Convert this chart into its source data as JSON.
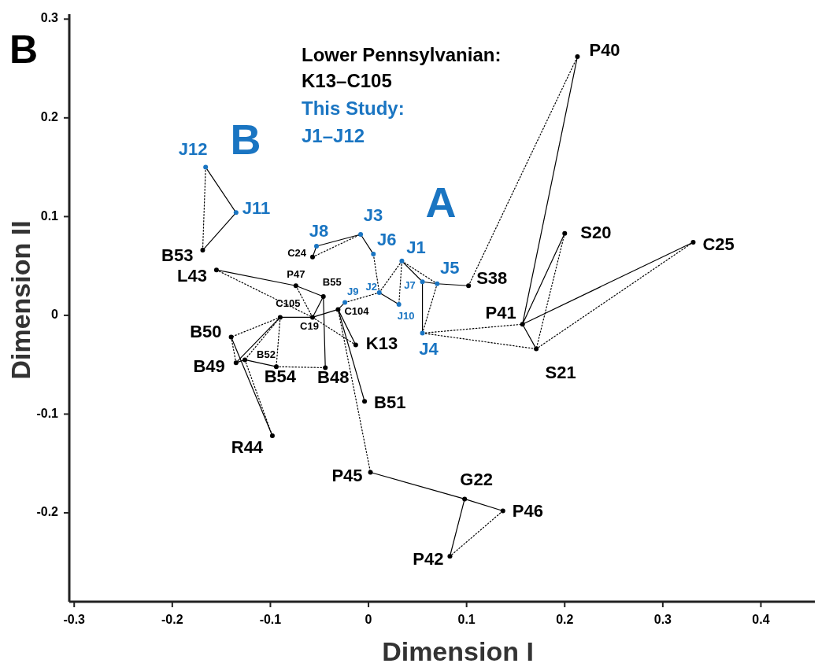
{
  "chart_data": {
    "type": "scatter",
    "title": "B",
    "xlabel": "Dimension I",
    "ylabel": "Dimension II",
    "xlim": [
      -0.305,
      0.455
    ],
    "ylim": [
      -0.29,
      0.305
    ],
    "xticks": [
      -0.3,
      -0.2,
      -0.1,
      0,
      0.1,
      0.2,
      0.3,
      0.4
    ],
    "yticks": [
      -0.2,
      -0.1,
      0,
      0.1,
      0.2,
      0.3
    ],
    "annotations": [
      "Lower Pennsylvanian:",
      "K13–C105",
      "This Study:",
      "J1–J12",
      "A",
      "B"
    ],
    "series": [
      {
        "type": "scatter",
        "color": "#000000",
        "marker": "circle",
        "x": [
          0.213,
          0.2,
          0.331,
          0.102,
          0.157,
          0.171,
          -0.013,
          -0.004,
          -0.169,
          -0.155,
          -0.14,
          -0.135,
          -0.094,
          -0.044,
          -0.098,
          0.002,
          0.098,
          0.137,
          0.083
        ],
        "values": [
          0.262,
          0.083,
          0.074,
          0.03,
          -0.009,
          -0.034,
          -0.03,
          -0.087,
          0.066,
          0.046,
          -0.022,
          -0.048,
          -0.052,
          -0.053,
          -0.122,
          -0.159,
          -0.186,
          -0.198,
          -0.244
        ],
        "value_labels": [
          "P40",
          "S20",
          "C25",
          "S38",
          "P41",
          "S21",
          "K13",
          "B51",
          "B53",
          "L43",
          "B50",
          "B49",
          "B54",
          "B48",
          "R44",
          "P45",
          "G22",
          "P46",
          "P42"
        ]
      },
      {
        "type": "scatter",
        "color": "#000000",
        "marker": "circle",
        "x": [
          -0.057,
          -0.074,
          -0.09,
          -0.057,
          -0.046,
          -0.126,
          -0.031
        ],
        "values": [
          0.059,
          0.03,
          -0.002,
          -0.002,
          0.019,
          -0.045,
          0.006
        ],
        "value_labels": [
          "C24",
          "P47",
          "C105",
          "C19",
          "B55",
          "B52",
          "C104"
        ]
      },
      {
        "type": "scatter",
        "color": "#1a75c2",
        "marker": "circle",
        "x": [
          0.034,
          -0.008,
          0.055,
          0.07,
          0.005,
          -0.053,
          -0.135,
          -0.166
        ],
        "values": [
          0.055,
          0.082,
          -0.018,
          0.032,
          0.062,
          0.07,
          0.104,
          0.15
        ],
        "value_labels": [
          "J1",
          "J3",
          "J4",
          "J5",
          "J6",
          "J8",
          "J11",
          "J12"
        ]
      },
      {
        "type": "scatter",
        "color": "#1a75c2",
        "marker": "circle",
        "x": [
          0.011,
          0.055,
          -0.024,
          0.031
        ],
        "values": [
          0.023,
          0.034,
          0.013,
          0.011
        ],
        "value_labels": [
          "J2",
          "J7",
          "J9",
          "J10"
        ]
      },
      {
        "type": "line",
        "color": "#000000",
        "line_style": "solid",
        "marker": "none",
        "x": [
          -0.166,
          -0.135,
          -0.169
        ],
        "values": [
          0.15,
          0.104,
          0.066
        ]
      },
      {
        "type": "line",
        "color": "#000000",
        "line_style": "solid",
        "marker": "none",
        "x": [
          -0.057,
          -0.053,
          -0.008,
          0.005
        ],
        "values": [
          0.059,
          0.07,
          0.082,
          0.062
        ]
      },
      {
        "type": "line",
        "color": "#000000",
        "line_style": "solid",
        "marker": "none",
        "x": [
          0.011,
          0.031
        ],
        "values": [
          0.023,
          0.011
        ]
      },
      {
        "type": "line",
        "color": "#000000",
        "line_style": "solid",
        "marker": "none",
        "x": [
          0.034,
          0.055
        ],
        "values": [
          0.055,
          0.034
        ]
      },
      {
        "type": "line",
        "color": "#000000",
        "line_style": "solid",
        "marker": "none",
        "x": [
          0.055,
          0.055,
          0.07,
          0.102
        ],
        "values": [
          -0.018,
          0.034,
          0.032,
          0.03
        ]
      },
      {
        "type": "line",
        "color": "#000000",
        "line_style": "solid",
        "marker": "none",
        "x": [
          -0.155,
          -0.074,
          -0.046,
          -0.044
        ],
        "values": [
          0.046,
          0.03,
          0.019,
          -0.053
        ]
      },
      {
        "type": "line",
        "color": "#000000",
        "line_style": "solid",
        "marker": "none",
        "x": [
          -0.046,
          -0.057
        ],
        "values": [
          0.019,
          -0.002
        ]
      },
      {
        "type": "line",
        "color": "#000000",
        "line_style": "solid",
        "marker": "none",
        "x": [
          -0.09,
          -0.057,
          -0.031,
          -0.024
        ],
        "values": [
          -0.002,
          -0.002,
          0.006,
          0.013
        ]
      },
      {
        "type": "line",
        "color": "#000000",
        "line_style": "solid",
        "marker": "none",
        "x": [
          -0.031,
          -0.013
        ],
        "values": [
          0.006,
          -0.03
        ]
      },
      {
        "type": "line",
        "color": "#000000",
        "line_style": "solid",
        "marker": "none",
        "x": [
          -0.031,
          -0.004
        ],
        "values": [
          0.006,
          -0.087
        ]
      },
      {
        "type": "line",
        "color": "#000000",
        "line_style": "solid",
        "marker": "none",
        "x": [
          -0.09,
          -0.135,
          -0.126,
          -0.094
        ],
        "values": [
          -0.002,
          -0.048,
          -0.045,
          -0.052
        ]
      },
      {
        "type": "line",
        "color": "#000000",
        "line_style": "solid",
        "marker": "none",
        "x": [
          -0.14,
          -0.098
        ],
        "values": [
          -0.022,
          -0.122
        ]
      },
      {
        "type": "line",
        "color": "#000000",
        "line_style": "solid",
        "marker": "none",
        "x": [
          0.157,
          0.213
        ],
        "values": [
          -0.009,
          0.262
        ]
      },
      {
        "type": "line",
        "color": "#000000",
        "line_style": "solid",
        "marker": "none",
        "x": [
          0.157,
          0.2
        ],
        "values": [
          -0.009,
          0.083
        ]
      },
      {
        "type": "line",
        "color": "#000000",
        "line_style": "solid",
        "marker": "none",
        "x": [
          0.157,
          0.331
        ],
        "values": [
          -0.009,
          0.074
        ]
      },
      {
        "type": "line",
        "color": "#000000",
        "line_style": "solid",
        "marker": "none",
        "x": [
          0.157,
          0.171
        ],
        "values": [
          -0.009,
          -0.034
        ]
      },
      {
        "type": "line",
        "color": "#000000",
        "line_style": "solid",
        "marker": "none",
        "x": [
          0.002,
          0.098,
          0.137
        ],
        "values": [
          -0.159,
          -0.186,
          -0.198
        ]
      },
      {
        "type": "line",
        "color": "#000000",
        "line_style": "solid",
        "marker": "none",
        "x": [
          0.098,
          0.083
        ],
        "values": [
          -0.186,
          -0.244
        ]
      },
      {
        "type": "line",
        "color": "#000000",
        "line_style": "dotted",
        "marker": "none",
        "x": [
          -0.166,
          -0.169
        ],
        "values": [
          0.15,
          0.066
        ]
      },
      {
        "type": "line",
        "color": "#000000",
        "line_style": "dotted",
        "marker": "none",
        "x": [
          -0.057,
          -0.008
        ],
        "values": [
          0.059,
          0.082
        ]
      },
      {
        "type": "line",
        "color": "#000000",
        "line_style": "dotted",
        "marker": "none",
        "x": [
          0.005,
          0.011
        ],
        "values": [
          0.062,
          0.023
        ]
      },
      {
        "type": "line",
        "color": "#000000",
        "line_style": "dotted",
        "marker": "none",
        "x": [
          -0.024,
          0.011
        ],
        "values": [
          0.013,
          0.023
        ]
      },
      {
        "type": "line",
        "color": "#000000",
        "line_style": "dotted",
        "marker": "none",
        "x": [
          0.034,
          0.011
        ],
        "values": [
          0.055,
          0.023
        ]
      },
      {
        "type": "line",
        "color": "#000000",
        "line_style": "dotted",
        "marker": "none",
        "x": [
          0.034,
          0.031
        ],
        "values": [
          0.055,
          0.011
        ]
      },
      {
        "type": "line",
        "color": "#000000",
        "line_style": "dotted",
        "marker": "none",
        "x": [
          0.034,
          0.07
        ],
        "values": [
          0.055,
          0.032
        ]
      },
      {
        "type": "line",
        "color": "#000000",
        "line_style": "dotted",
        "marker": "none",
        "x": [
          0.07,
          0.055
        ],
        "values": [
          0.032,
          -0.018
        ]
      },
      {
        "type": "line",
        "color": "#000000",
        "line_style": "dotted",
        "marker": "none",
        "x": [
          0.055,
          0.157
        ],
        "values": [
          -0.018,
          -0.009
        ]
      },
      {
        "type": "line",
        "color": "#000000",
        "line_style": "dotted",
        "marker": "none",
        "x": [
          0.055,
          0.171
        ],
        "values": [
          -0.018,
          -0.034
        ]
      },
      {
        "type": "line",
        "color": "#000000",
        "line_style": "dotted",
        "marker": "none",
        "x": [
          0.102,
          0.213
        ],
        "values": [
          0.03,
          0.262
        ]
      },
      {
        "type": "line",
        "color": "#000000",
        "line_style": "dotted",
        "marker": "none",
        "x": [
          0.2,
          0.171
        ],
        "values": [
          0.083,
          -0.034
        ]
      },
      {
        "type": "line",
        "color": "#000000",
        "line_style": "dotted",
        "marker": "none",
        "x": [
          0.331,
          0.171
        ],
        "values": [
          0.074,
          -0.034
        ]
      },
      {
        "type": "line",
        "color": "#000000",
        "line_style": "dotted",
        "marker": "none",
        "x": [
          0.137,
          0.083
        ],
        "values": [
          -0.198,
          -0.244
        ]
      },
      {
        "type": "line",
        "color": "#000000",
        "line_style": "dotted",
        "marker": "none",
        "x": [
          -0.031,
          0.002
        ],
        "values": [
          0.006,
          -0.159
        ]
      },
      {
        "type": "line",
        "color": "#000000",
        "line_style": "dotted",
        "marker": "none",
        "x": [
          -0.155,
          -0.057
        ],
        "values": [
          0.046,
          -0.002
        ]
      },
      {
        "type": "line",
        "color": "#000000",
        "line_style": "dotted",
        "marker": "none",
        "x": [
          -0.074,
          -0.057
        ],
        "values": [
          0.03,
          -0.002
        ]
      },
      {
        "type": "line",
        "color": "#000000",
        "line_style": "dotted",
        "marker": "none",
        "x": [
          -0.057,
          -0.013
        ],
        "values": [
          -0.002,
          -0.03
        ]
      },
      {
        "type": "line",
        "color": "#000000",
        "line_style": "dotted",
        "marker": "none",
        "x": [
          -0.09,
          -0.14
        ],
        "values": [
          -0.002,
          -0.022
        ]
      },
      {
        "type": "line",
        "color": "#000000",
        "line_style": "dotted",
        "marker": "none",
        "x": [
          -0.09,
          -0.094
        ],
        "values": [
          -0.002,
          -0.052
        ]
      },
      {
        "type": "line",
        "color": "#000000",
        "line_style": "dotted",
        "marker": "none",
        "x": [
          -0.09,
          -0.126
        ],
        "values": [
          -0.002,
          -0.045
        ]
      },
      {
        "type": "line",
        "color": "#000000",
        "line_style": "dotted",
        "marker": "none",
        "x": [
          -0.094,
          -0.044
        ],
        "values": [
          -0.052,
          -0.053
        ]
      },
      {
        "type": "line",
        "color": "#000000",
        "line_style": "dotted",
        "marker": "none",
        "x": [
          -0.14,
          -0.135
        ],
        "values": [
          -0.022,
          -0.048
        ]
      },
      {
        "type": "line",
        "color": "#000000",
        "line_style": "dotted",
        "marker": "none",
        "x": [
          -0.126,
          -0.098
        ],
        "values": [
          -0.045,
          -0.122
        ]
      }
    ]
  }
}
